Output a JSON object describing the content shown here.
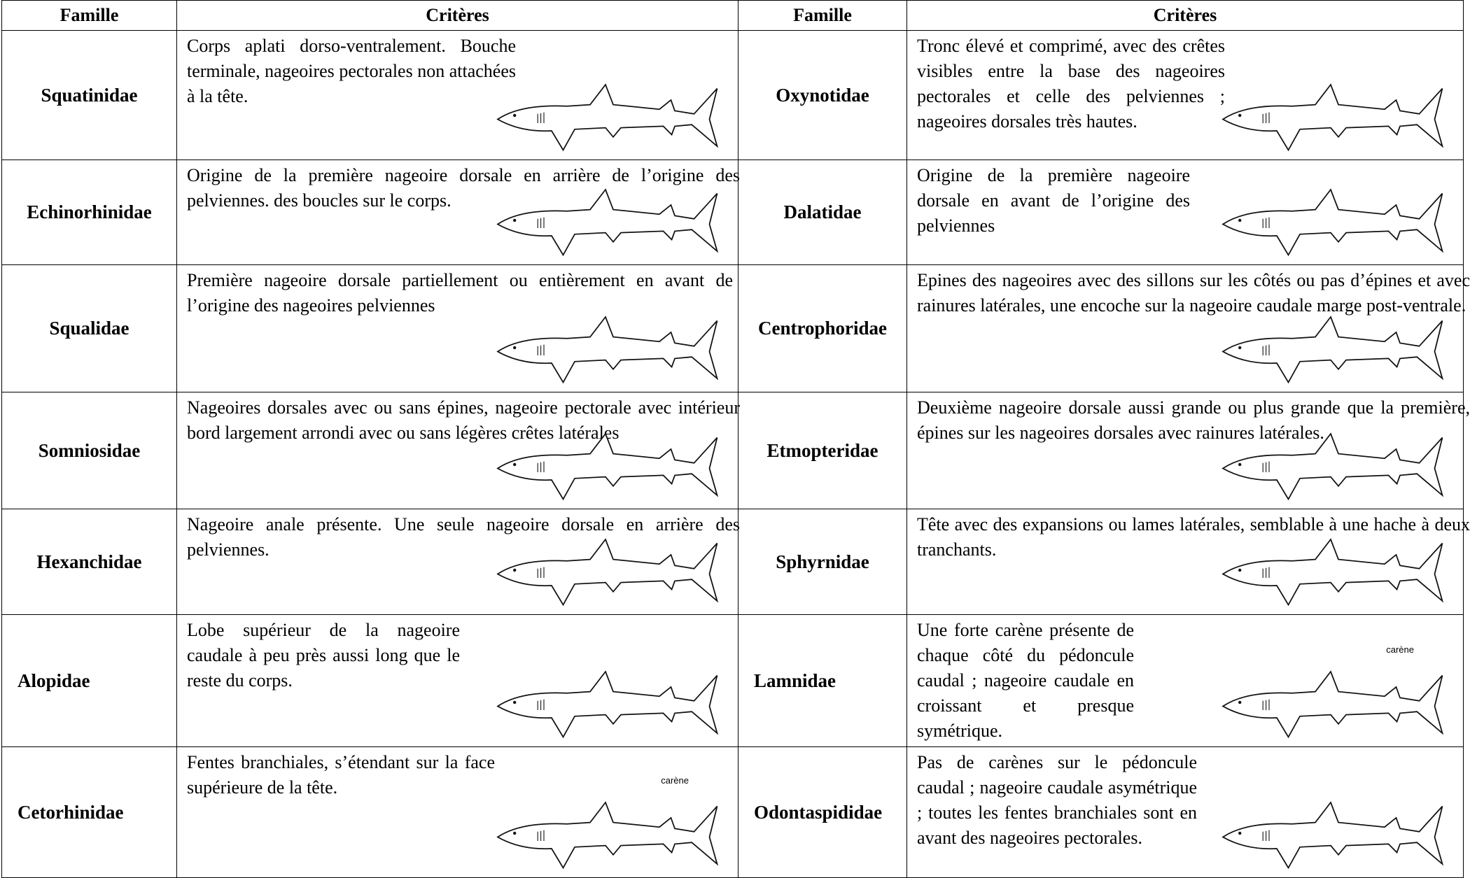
{
  "table": {
    "header": [
      "Famille",
      "Critères",
      "Famille",
      "Critères"
    ],
    "rows": [
      {
        "left": {
          "family": "Squatinidae",
          "criteria": "Corps aplati dorso-ventralement. Bouche terminale, nageoires pectorales non attachées à la tête."
        },
        "right": {
          "family": "Oxynotidae",
          "criteria": "Tronc élevé et comprimé, avec des crêtes visibles entre la base des nageoires pectorales et celle des pelviennes ; nageoires dorsales très hautes."
        }
      },
      {
        "left": {
          "family": "Echinorhinidae",
          "criteria": "Origine de la première nageoire dorsale en arrière de l’origine des pelviennes. des boucles sur le corps."
        },
        "right": {
          "family": "Dalatidae",
          "criteria": "Origine de la première nageoire dorsale en avant de l’origine des pelviennes"
        }
      },
      {
        "left": {
          "family": "Squalidae",
          "criteria": "Première nageoire dorsale partiellement ou entièrement en avant de l’origine des nageoires pelviennes"
        },
        "right": {
          "family": "Centrophoridae",
          "criteria": "Epines des nageoires avec des sillons sur les côtés ou pas d’épines et avec rainures latérales, une encoche sur la nageoire caudale marge post-ventrale."
        }
      },
      {
        "left": {
          "family": "Somniosidae",
          "criteria": "Nageoires dorsales avec ou sans épines, nageoire pectorale avec intérieur bord largement arrondi avec ou sans légères crêtes latérales"
        },
        "right": {
          "family": "Etmopteridae",
          "criteria": "Deuxième nageoire dorsale aussi grande ou plus grande que la première, épines sur les nageoires dorsales avec rainures latérales."
        }
      },
      {
        "left": {
          "family": "Hexanchidae",
          "criteria": "Nageoire anale présente.  Une seule nageoire dorsale en arrière des pelviennes."
        },
        "right": {
          "family": "Sphyrnidae",
          "criteria": "Tête avec des expansions ou lames latérales, semblable à une hache à deux tranchants."
        }
      },
      {
        "left": {
          "family": "Alopidae",
          "criteria": "Lobe supérieur de la nageoire caudale à peu près aussi long que le reste du corps."
        },
        "right": {
          "family": "Lamnidae",
          "criteria": "Une forte carène présente de chaque côté du pédoncule caudal ; nageoire caudale en croissant et presque symétrique.",
          "annotation": "carène"
        }
      },
      {
        "left": {
          "family": "Cetorhinidae",
          "criteria": "Fentes branchiales, s’étendant sur la face supérieure de la tête.",
          "annotation": "carène"
        },
        "right": {
          "family": "Odontaspididae",
          "criteria": "Pas de carènes sur le pédoncule caudal ; nageoire caudale asymétrique ; toutes les fentes branchiales sont en avant des nageoires pectorales."
        }
      }
    ]
  }
}
